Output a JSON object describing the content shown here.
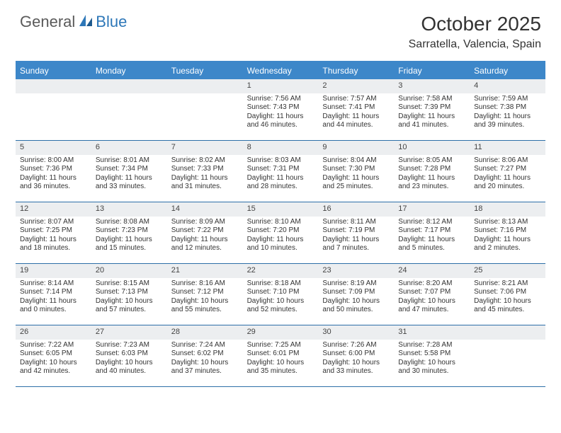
{
  "logo": {
    "part1": "General",
    "part2": "Blue"
  },
  "title": "October 2025",
  "location": "Sarratella, Valencia, Spain",
  "colors": {
    "header_bg": "#3d87c9",
    "header_text": "#ffffff",
    "daynum_bg": "#eceef0",
    "week_border": "#2d6fa8",
    "logo_gray": "#5a5a5a",
    "logo_blue": "#2d77b8"
  },
  "day_names": [
    "Sunday",
    "Monday",
    "Tuesday",
    "Wednesday",
    "Thursday",
    "Friday",
    "Saturday"
  ],
  "weeks": [
    [
      {
        "n": "",
        "lines": []
      },
      {
        "n": "",
        "lines": []
      },
      {
        "n": "",
        "lines": []
      },
      {
        "n": "1",
        "lines": [
          "Sunrise: 7:56 AM",
          "Sunset: 7:43 PM",
          "Daylight: 11 hours",
          "and 46 minutes."
        ]
      },
      {
        "n": "2",
        "lines": [
          "Sunrise: 7:57 AM",
          "Sunset: 7:41 PM",
          "Daylight: 11 hours",
          "and 44 minutes."
        ]
      },
      {
        "n": "3",
        "lines": [
          "Sunrise: 7:58 AM",
          "Sunset: 7:39 PM",
          "Daylight: 11 hours",
          "and 41 minutes."
        ]
      },
      {
        "n": "4",
        "lines": [
          "Sunrise: 7:59 AM",
          "Sunset: 7:38 PM",
          "Daylight: 11 hours",
          "and 39 minutes."
        ]
      }
    ],
    [
      {
        "n": "5",
        "lines": [
          "Sunrise: 8:00 AM",
          "Sunset: 7:36 PM",
          "Daylight: 11 hours",
          "and 36 minutes."
        ]
      },
      {
        "n": "6",
        "lines": [
          "Sunrise: 8:01 AM",
          "Sunset: 7:34 PM",
          "Daylight: 11 hours",
          "and 33 minutes."
        ]
      },
      {
        "n": "7",
        "lines": [
          "Sunrise: 8:02 AM",
          "Sunset: 7:33 PM",
          "Daylight: 11 hours",
          "and 31 minutes."
        ]
      },
      {
        "n": "8",
        "lines": [
          "Sunrise: 8:03 AM",
          "Sunset: 7:31 PM",
          "Daylight: 11 hours",
          "and 28 minutes."
        ]
      },
      {
        "n": "9",
        "lines": [
          "Sunrise: 8:04 AM",
          "Sunset: 7:30 PM",
          "Daylight: 11 hours",
          "and 25 minutes."
        ]
      },
      {
        "n": "10",
        "lines": [
          "Sunrise: 8:05 AM",
          "Sunset: 7:28 PM",
          "Daylight: 11 hours",
          "and 23 minutes."
        ]
      },
      {
        "n": "11",
        "lines": [
          "Sunrise: 8:06 AM",
          "Sunset: 7:27 PM",
          "Daylight: 11 hours",
          "and 20 minutes."
        ]
      }
    ],
    [
      {
        "n": "12",
        "lines": [
          "Sunrise: 8:07 AM",
          "Sunset: 7:25 PM",
          "Daylight: 11 hours",
          "and 18 minutes."
        ]
      },
      {
        "n": "13",
        "lines": [
          "Sunrise: 8:08 AM",
          "Sunset: 7:23 PM",
          "Daylight: 11 hours",
          "and 15 minutes."
        ]
      },
      {
        "n": "14",
        "lines": [
          "Sunrise: 8:09 AM",
          "Sunset: 7:22 PM",
          "Daylight: 11 hours",
          "and 12 minutes."
        ]
      },
      {
        "n": "15",
        "lines": [
          "Sunrise: 8:10 AM",
          "Sunset: 7:20 PM",
          "Daylight: 11 hours",
          "and 10 minutes."
        ]
      },
      {
        "n": "16",
        "lines": [
          "Sunrise: 8:11 AM",
          "Sunset: 7:19 PM",
          "Daylight: 11 hours",
          "and 7 minutes."
        ]
      },
      {
        "n": "17",
        "lines": [
          "Sunrise: 8:12 AM",
          "Sunset: 7:17 PM",
          "Daylight: 11 hours",
          "and 5 minutes."
        ]
      },
      {
        "n": "18",
        "lines": [
          "Sunrise: 8:13 AM",
          "Sunset: 7:16 PM",
          "Daylight: 11 hours",
          "and 2 minutes."
        ]
      }
    ],
    [
      {
        "n": "19",
        "lines": [
          "Sunrise: 8:14 AM",
          "Sunset: 7:14 PM",
          "Daylight: 11 hours",
          "and 0 minutes."
        ]
      },
      {
        "n": "20",
        "lines": [
          "Sunrise: 8:15 AM",
          "Sunset: 7:13 PM",
          "Daylight: 10 hours",
          "and 57 minutes."
        ]
      },
      {
        "n": "21",
        "lines": [
          "Sunrise: 8:16 AM",
          "Sunset: 7:12 PM",
          "Daylight: 10 hours",
          "and 55 minutes."
        ]
      },
      {
        "n": "22",
        "lines": [
          "Sunrise: 8:18 AM",
          "Sunset: 7:10 PM",
          "Daylight: 10 hours",
          "and 52 minutes."
        ]
      },
      {
        "n": "23",
        "lines": [
          "Sunrise: 8:19 AM",
          "Sunset: 7:09 PM",
          "Daylight: 10 hours",
          "and 50 minutes."
        ]
      },
      {
        "n": "24",
        "lines": [
          "Sunrise: 8:20 AM",
          "Sunset: 7:07 PM",
          "Daylight: 10 hours",
          "and 47 minutes."
        ]
      },
      {
        "n": "25",
        "lines": [
          "Sunrise: 8:21 AM",
          "Sunset: 7:06 PM",
          "Daylight: 10 hours",
          "and 45 minutes."
        ]
      }
    ],
    [
      {
        "n": "26",
        "lines": [
          "Sunrise: 7:22 AM",
          "Sunset: 6:05 PM",
          "Daylight: 10 hours",
          "and 42 minutes."
        ]
      },
      {
        "n": "27",
        "lines": [
          "Sunrise: 7:23 AM",
          "Sunset: 6:03 PM",
          "Daylight: 10 hours",
          "and 40 minutes."
        ]
      },
      {
        "n": "28",
        "lines": [
          "Sunrise: 7:24 AM",
          "Sunset: 6:02 PM",
          "Daylight: 10 hours",
          "and 37 minutes."
        ]
      },
      {
        "n": "29",
        "lines": [
          "Sunrise: 7:25 AM",
          "Sunset: 6:01 PM",
          "Daylight: 10 hours",
          "and 35 minutes."
        ]
      },
      {
        "n": "30",
        "lines": [
          "Sunrise: 7:26 AM",
          "Sunset: 6:00 PM",
          "Daylight: 10 hours",
          "and 33 minutes."
        ]
      },
      {
        "n": "31",
        "lines": [
          "Sunrise: 7:28 AM",
          "Sunset: 5:58 PM",
          "Daylight: 10 hours",
          "and 30 minutes."
        ]
      },
      {
        "n": "",
        "lines": []
      }
    ]
  ]
}
